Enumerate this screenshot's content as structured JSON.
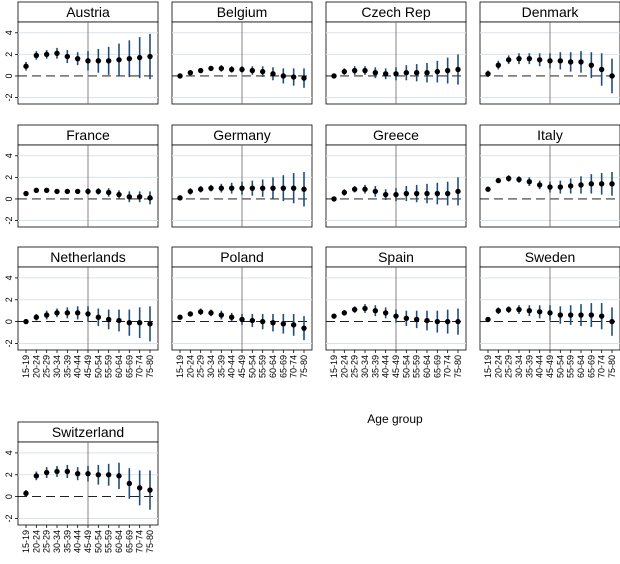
{
  "chart_data": {
    "type": "scatter",
    "style": "point estimates with confidence interval bars, small multiples by country",
    "xlabel": "Age group",
    "ylim": [
      -2.6,
      5.0
    ],
    "yticks": [
      -2,
      0,
      2,
      4
    ],
    "reference_line_y": 0,
    "vertical_marker_at": "45-49",
    "categories": [
      "15-19",
      "20-24",
      "25-29",
      "30-34",
      "35-39",
      "40-44",
      "45-49",
      "50-54",
      "55-59",
      "60-64",
      "65-69",
      "70-74",
      "75-80"
    ],
    "colors": {
      "point": "#000000",
      "ci": "#1f4e79",
      "grid": "#d9e4ea",
      "frame": "#000000",
      "vline": "#666666",
      "ref": "#000000"
    },
    "panels": [
      {
        "name": "Austria",
        "values": [
          0.9,
          1.9,
          2.0,
          2.1,
          1.8,
          1.6,
          1.4,
          1.4,
          1.4,
          1.5,
          1.6,
          1.7,
          1.8
        ],
        "ci": [
          0.4,
          0.4,
          0.4,
          0.5,
          0.6,
          0.6,
          0.9,
          1.1,
          1.3,
          1.5,
          1.7,
          1.9,
          2.1
        ]
      },
      {
        "name": "Belgium",
        "values": [
          0.0,
          0.3,
          0.5,
          0.7,
          0.7,
          0.6,
          0.6,
          0.5,
          0.4,
          0.2,
          0.0,
          -0.1,
          -0.2
        ],
        "ci": [
          0.1,
          0.2,
          0.2,
          0.2,
          0.3,
          0.3,
          0.3,
          0.4,
          0.5,
          0.6,
          0.7,
          0.8,
          0.9
        ]
      },
      {
        "name": "Czech Rep",
        "values": [
          0.0,
          0.4,
          0.5,
          0.5,
          0.3,
          0.2,
          0.2,
          0.3,
          0.3,
          0.3,
          0.4,
          0.5,
          0.6
        ],
        "ci": [
          0.2,
          0.3,
          0.4,
          0.4,
          0.5,
          0.5,
          0.6,
          0.7,
          0.8,
          0.9,
          1.0,
          1.2,
          1.4
        ]
      },
      {
        "name": "Denmark",
        "values": [
          0.2,
          1.0,
          1.5,
          1.6,
          1.6,
          1.5,
          1.4,
          1.4,
          1.3,
          1.3,
          1.0,
          0.6,
          0.0
        ],
        "ci": [
          0.3,
          0.4,
          0.4,
          0.5,
          0.5,
          0.6,
          0.7,
          0.8,
          0.9,
          1.0,
          1.2,
          1.5,
          1.6
        ]
      },
      {
        "name": "France",
        "values": [
          0.5,
          0.8,
          0.8,
          0.7,
          0.7,
          0.7,
          0.7,
          0.7,
          0.6,
          0.4,
          0.2,
          0.2,
          0.1
        ],
        "ci": [
          0.1,
          0.1,
          0.2,
          0.2,
          0.2,
          0.2,
          0.3,
          0.3,
          0.4,
          0.4,
          0.5,
          0.5,
          0.6
        ]
      },
      {
        "name": "Germany",
        "values": [
          0.1,
          0.7,
          0.9,
          1.0,
          1.0,
          1.0,
          1.0,
          1.0,
          1.0,
          1.0,
          1.0,
          1.0,
          0.9
        ],
        "ci": [
          0.2,
          0.3,
          0.3,
          0.3,
          0.4,
          0.5,
          0.6,
          0.7,
          0.8,
          1.0,
          1.2,
          1.4,
          1.6
        ]
      },
      {
        "name": "Greece",
        "values": [
          0.0,
          0.6,
          0.9,
          0.9,
          0.7,
          0.4,
          0.4,
          0.5,
          0.5,
          0.5,
          0.5,
          0.5,
          0.7
        ],
        "ci": [
          0.2,
          0.3,
          0.3,
          0.4,
          0.5,
          0.5,
          0.6,
          0.7,
          0.8,
          0.9,
          1.0,
          1.1,
          1.3
        ]
      },
      {
        "name": "Italy",
        "values": [
          0.9,
          1.7,
          1.9,
          1.8,
          1.6,
          1.3,
          1.1,
          1.1,
          1.2,
          1.3,
          1.4,
          1.4,
          1.4
        ],
        "ci": [
          0.2,
          0.2,
          0.3,
          0.3,
          0.4,
          0.4,
          0.5,
          0.6,
          0.7,
          0.8,
          0.9,
          1.0,
          1.1
        ]
      },
      {
        "name": "Netherlands",
        "values": [
          0.0,
          0.4,
          0.6,
          0.8,
          0.8,
          0.8,
          0.7,
          0.4,
          0.2,
          0.1,
          -0.1,
          -0.1,
          -0.2
        ],
        "ci": [
          0.2,
          0.3,
          0.4,
          0.4,
          0.5,
          0.6,
          0.7,
          0.8,
          0.9,
          1.0,
          1.2,
          1.4,
          1.6
        ]
      },
      {
        "name": "Poland",
        "values": [
          0.4,
          0.7,
          0.9,
          0.8,
          0.6,
          0.4,
          0.2,
          0.1,
          0.0,
          -0.1,
          -0.2,
          -0.3,
          -0.6
        ],
        "ci": [
          0.1,
          0.2,
          0.3,
          0.3,
          0.4,
          0.4,
          0.5,
          0.6,
          0.7,
          0.8,
          0.9,
          1.0,
          1.1
        ]
      },
      {
        "name": "Spain",
        "values": [
          0.5,
          0.8,
          1.1,
          1.2,
          1.0,
          0.8,
          0.5,
          0.3,
          0.2,
          0.1,
          0.0,
          0.0,
          0.0
        ],
        "ci": [
          0.1,
          0.2,
          0.3,
          0.4,
          0.5,
          0.5,
          0.6,
          0.7,
          0.8,
          0.9,
          1.0,
          1.1,
          1.2
        ]
      },
      {
        "name": "Sweden",
        "values": [
          0.2,
          1.0,
          1.1,
          1.1,
          1.0,
          0.9,
          0.8,
          0.6,
          0.6,
          0.6,
          0.6,
          0.5,
          0.0
        ],
        "ci": [
          0.2,
          0.3,
          0.3,
          0.4,
          0.5,
          0.6,
          0.7,
          0.8,
          0.9,
          1.0,
          1.1,
          1.2,
          1.3
        ]
      },
      {
        "name": "Switzerland",
        "values": [
          0.3,
          1.9,
          2.2,
          2.3,
          2.3,
          2.1,
          2.1,
          2.0,
          2.0,
          1.9,
          1.2,
          0.8,
          0.6
        ],
        "ci": [
          0.3,
          0.4,
          0.5,
          0.5,
          0.6,
          0.6,
          0.7,
          0.9,
          1.0,
          1.2,
          1.4,
          1.6,
          1.8
        ]
      }
    ]
  }
}
